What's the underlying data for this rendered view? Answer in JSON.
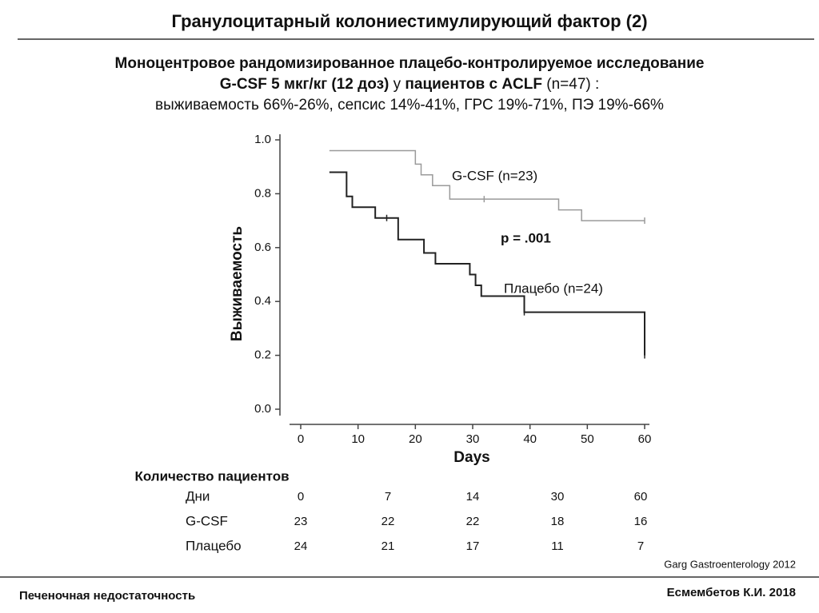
{
  "header": {
    "title": "Гранулоцитарный колониестимулирующий фактор (2)"
  },
  "subtitle": {
    "line1": "Моноцентровое рандомизированное плацебо-контролируемое исследование",
    "line2": [
      {
        "text": "G-CSF 5 мкг/кг (12 доз)",
        "bold": true
      },
      {
        "text": " у ",
        "bold": false
      },
      {
        "text": "пациентов с ACLF",
        "bold": true
      },
      {
        "text": " (n=47) :",
        "bold": false
      }
    ],
    "line3": "выживаемость 66%-26%, сепсис 14%-41%, ГРС 19%-71%, ПЭ 19%-66%"
  },
  "chart_data": {
    "type": "step",
    "x_label": "Days",
    "y_label": "Выживаемость",
    "annotation": "p = .001",
    "xlim": [
      0,
      60
    ],
    "xticks": [
      0,
      10,
      20,
      30,
      40,
      50,
      60
    ],
    "ylim": [
      0,
      1
    ],
    "yticks": [
      {
        "value": 0,
        "label": "0.0"
      },
      0.2,
      0.4,
      0.6,
      0.8,
      {
        "value": 1,
        "label": "1.0"
      }
    ],
    "series": [
      {
        "name": "G-CSF (n=23)",
        "color": "#9a9a9a",
        "x": [
          5,
          20,
          21,
          23,
          26,
          45,
          49,
          60
        ],
        "values": [
          0.96,
          0.91,
          0.87,
          0.83,
          0.78,
          0.74,
          0.7,
          0.7
        ],
        "censored": [
          32,
          60
        ]
      },
      {
        "name": "Плацебо (n=24)",
        "color": "#222222",
        "x": [
          5,
          8,
          9,
          13,
          17,
          21.5,
          23.5,
          29.5,
          30.5,
          31.5,
          39,
          60
        ],
        "values": [
          0.88,
          0.79,
          0.75,
          0.71,
          0.63,
          0.58,
          0.54,
          0.5,
          0.46,
          0.42,
          0.36,
          0.2
        ],
        "censored": [
          15,
          39,
          60
        ]
      }
    ]
  },
  "table": {
    "title": "Количество пациентов",
    "rows": [
      [
        "Дни",
        0,
        7,
        14,
        30,
        60
      ],
      [
        "G-CSF",
        23,
        22,
        22,
        18,
        16
      ],
      [
        "Плацебо",
        24,
        21,
        17,
        11,
        7
      ]
    ]
  },
  "citation": "Garg Gastroenterology 2012",
  "footer": {
    "left": "Печеночная недостаточность",
    "right": "Есмембетов К.И.  2018"
  }
}
